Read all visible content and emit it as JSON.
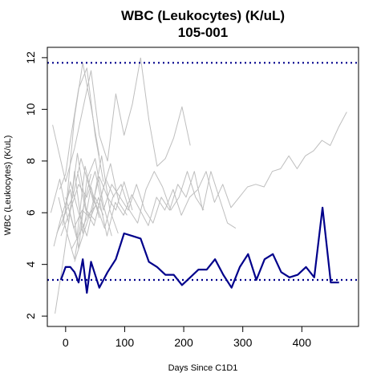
{
  "chart_data": {
    "type": "line",
    "title": "WBC (Leukocytes) (K/uL)",
    "subtitle": "105-001",
    "xlabel": "Days Since C1D1",
    "ylabel": "WBC (Leukocytes) (K/uL)",
    "xlim": [
      -31,
      496
    ],
    "ylim": [
      1.6,
      12.4
    ],
    "xticks": [
      0,
      100,
      200,
      300,
      400
    ],
    "yticks": [
      2,
      4,
      6,
      8,
      10,
      12
    ],
    "grid": false,
    "legend": "none",
    "reference_lines": [
      {
        "y": 11.8,
        "style": "dotted",
        "color": "#00008B"
      },
      {
        "y": 3.4,
        "style": "dotted",
        "color": "#00008B"
      }
    ],
    "highlight": {
      "color": "#00008B",
      "x": [
        -8,
        0,
        8,
        15,
        22,
        29,
        36,
        43,
        57,
        71,
        85,
        99,
        113,
        127,
        141,
        155,
        169,
        183,
        197,
        211,
        225,
        239,
        253,
        267,
        281,
        295,
        309,
        323,
        337,
        351,
        365,
        379,
        393,
        407,
        421,
        435,
        449,
        463
      ],
      "y": [
        3.4,
        3.9,
        3.9,
        3.7,
        3.3,
        4.2,
        2.9,
        4.1,
        3.1,
        3.7,
        4.2,
        5.2,
        5.1,
        5.0,
        4.1,
        3.9,
        3.6,
        3.6,
        3.2,
        3.5,
        3.8,
        3.8,
        4.2,
        3.6,
        3.1,
        3.9,
        4.4,
        3.4,
        4.2,
        4.4,
        3.7,
        3.5,
        3.6,
        3.9,
        3.5,
        6.2,
        3.3,
        3.3
      ]
    },
    "background_series_color": "#bebebe",
    "background_series": [
      {
        "x": [
          -22,
          0,
          15,
          29,
          43,
          57,
          71,
          85,
          99,
          113,
          127
        ],
        "y": [
          9.4,
          7.2,
          8.5,
          10.0,
          11.5,
          9.0,
          8.0,
          10.6,
          9.0,
          10.2,
          12.0
        ]
      },
      {
        "x": [
          127,
          141,
          155,
          169,
          183,
          197,
          211
        ],
        "y": [
          12.0,
          9.6,
          7.8,
          8.1,
          8.9,
          10.1,
          8.6
        ]
      },
      {
        "x": [
          -15,
          0,
          15,
          29,
          43,
          57
        ],
        "y": [
          5.2,
          6.0,
          9.7,
          11.8,
          10.1,
          8.2
        ]
      },
      {
        "x": [
          -10,
          0,
          8,
          22,
          36,
          50,
          64
        ],
        "y": [
          6.9,
          7.5,
          8.8,
          10.8,
          11.6,
          9.0,
          7.2
        ]
      },
      {
        "x": [
          -5,
          8,
          22,
          36,
          50,
          64
        ],
        "y": [
          5.5,
          7.2,
          6.0,
          5.1,
          6.6,
          5.9
        ]
      },
      {
        "x": [
          -20,
          -8,
          8,
          22,
          36,
          50,
          64,
          78
        ],
        "y": [
          4.7,
          5.8,
          6.9,
          4.6,
          7.3,
          8.1,
          6.3,
          5.1
        ]
      },
      {
        "x": [
          -18,
          -5,
          8,
          15,
          29,
          43,
          57
        ],
        "y": [
          2.1,
          4.0,
          6.1,
          7.6,
          5.2,
          7.0,
          5.8
        ]
      },
      {
        "x": [
          -12,
          0,
          15,
          29,
          43
        ],
        "y": [
          6.6,
          5.4,
          4.2,
          6.1,
          7.5
        ]
      },
      {
        "x": [
          -3,
          12,
          26,
          40,
          54,
          68,
          82
        ],
        "y": [
          5.9,
          6.6,
          8.1,
          7.0,
          6.1,
          7.3,
          6.6
        ]
      },
      {
        "x": [
          5,
          19,
          33,
          47,
          61,
          75,
          89
        ],
        "y": [
          6.2,
          5.0,
          7.8,
          6.4,
          8.2,
          6.1,
          5.2
        ]
      },
      {
        "x": [
          -25,
          -10,
          5,
          20,
          35,
          50
        ],
        "y": [
          6.0,
          7.3,
          5.6,
          8.3,
          6.1,
          5.7
        ]
      },
      {
        "x": [
          0,
          14,
          28,
          42,
          56,
          70,
          84,
          98,
          112,
          126,
          140,
          154,
          168,
          182,
          196,
          210,
          224,
          238,
          252,
          266,
          280,
          294,
          308,
          322,
          336,
          350,
          364,
          378,
          392,
          406,
          420,
          434,
          448,
          462,
          476
        ],
        "y": [
          6.6,
          5.4,
          6.1,
          5.8,
          6.6,
          5.1,
          6.4,
          5.9,
          6.7,
          6.1,
          5.5,
          6.6,
          6.1,
          6.9,
          5.9,
          6.6,
          6.9,
          7.6,
          6.4,
          7.1,
          6.2,
          6.6,
          7.0,
          7.1,
          7.0,
          7.6,
          7.7,
          8.2,
          7.7,
          8.2,
          8.4,
          8.8,
          8.6,
          9.3,
          9.9
        ]
      },
      {
        "x": [
          -8,
          8,
          22,
          36,
          50,
          64,
          78,
          92,
          106,
          120,
          134,
          148,
          162,
          176,
          190,
          204,
          218,
          232,
          246,
          260,
          274,
          288
        ],
        "y": [
          5.1,
          6.1,
          7.1,
          6.6,
          7.6,
          6.1,
          7.1,
          6.6,
          6.1,
          7.1,
          6.1,
          5.6,
          6.6,
          6.1,
          7.1,
          6.6,
          7.6,
          6.1,
          7.6,
          6.6,
          5.6,
          5.4
        ]
      },
      {
        "x": [
          10,
          24,
          38,
          52,
          66,
          80,
          94,
          108,
          122,
          136,
          150,
          164,
          178,
          192,
          206,
          220,
          234
        ],
        "y": [
          4.6,
          5.2,
          5.9,
          6.3,
          5.4,
          6.6,
          7.1,
          6.1,
          5.6,
          6.9,
          7.6,
          7.0,
          6.1,
          6.6,
          7.6,
          6.6,
          6.1
        ]
      },
      {
        "x": [
          15,
          29,
          43,
          57,
          71,
          85,
          99,
          113
        ],
        "y": [
          4.1,
          5.1,
          6.1,
          7.4,
          6.6,
          6.1,
          7.2,
          6.1
        ]
      },
      {
        "x": [
          20,
          34,
          48,
          62,
          76,
          90,
          104
        ],
        "y": [
          7.6,
          6.1,
          5.5,
          6.8,
          7.9,
          6.4,
          5.9
        ]
      }
    ]
  }
}
